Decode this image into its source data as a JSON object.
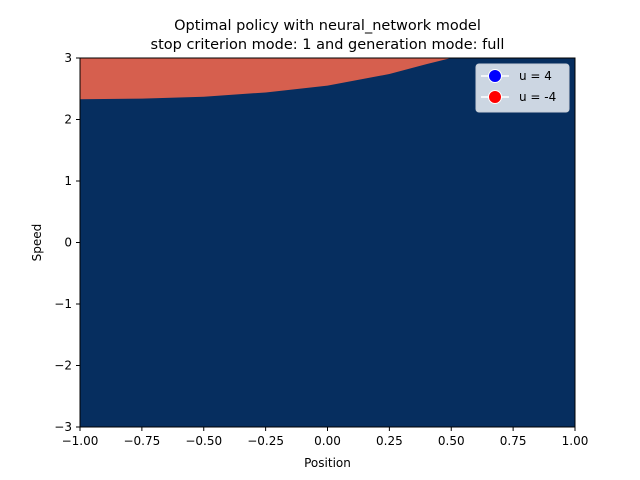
{
  "chart_data": {
    "type": "heatmap",
    "title_line1": "Optimal policy with neural_network model",
    "title_line2": "stop criterion mode: 1 and generation mode: full",
    "xlabel": "Position",
    "ylabel": "Speed",
    "xlim": [
      -1,
      1
    ],
    "ylim": [
      -3,
      3
    ],
    "xticks": [
      {
        "value": -1.0,
        "label": "−1.00"
      },
      {
        "value": -0.75,
        "label": "−0.75"
      },
      {
        "value": -0.5,
        "label": "−0.50"
      },
      {
        "value": -0.25,
        "label": "−0.25"
      },
      {
        "value": 0.0,
        "label": "0.00"
      },
      {
        "value": 0.25,
        "label": "0.25"
      },
      {
        "value": 0.5,
        "label": "0.50"
      },
      {
        "value": 0.75,
        "label": "0.75"
      },
      {
        "value": 1.0,
        "label": "1.00"
      }
    ],
    "yticks": [
      {
        "value": -3,
        "label": "−3"
      },
      {
        "value": -2,
        "label": "−2"
      },
      {
        "value": -1,
        "label": "−1"
      },
      {
        "value": 0,
        "label": "0"
      },
      {
        "value": 1,
        "label": "1"
      },
      {
        "value": 2,
        "label": "2"
      },
      {
        "value": 3,
        "label": "3"
      }
    ],
    "grid": false,
    "legend_position": "top-right",
    "legend": [
      {
        "label": "u = 4",
        "color": "#0000ff"
      },
      {
        "label": "u = -4",
        "color": "#ff0000"
      }
    ],
    "regions": [
      {
        "label": "u = 4",
        "color": "#062e5f"
      },
      {
        "label": "u = -4",
        "color": "#d65f4e"
      }
    ],
    "boundary": {
      "x": [
        -1.0,
        -0.75,
        -0.5,
        -0.25,
        0.0,
        0.25,
        0.4,
        0.5
      ],
      "y": [
        2.33,
        2.34,
        2.37,
        2.44,
        2.55,
        2.74,
        2.9,
        3.0
      ]
    }
  }
}
